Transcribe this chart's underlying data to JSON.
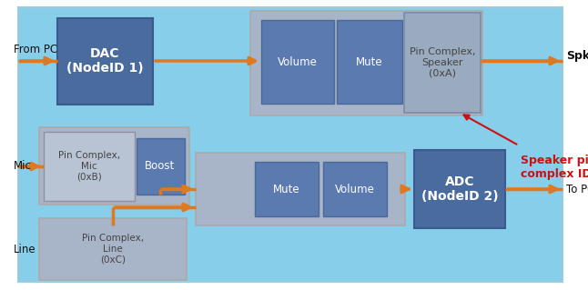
{
  "bg_color": "#87CEEB",
  "outer_bg": "#ffffff",
  "dark_blue": "#4a6b9e",
  "light_gray": "#a8b4c8",
  "medium_blue": "#5a7ab0",
  "arrow_color": "#e07820",
  "red_arrow": "#cc1111",
  "text_white": "#ffffff",
  "text_dark": "#444444",
  "text_black": "#111111",
  "dac_label": "DAC\n(NodeID 1)",
  "adc_label": "ADC\n(NodeID 2)",
  "pin_spk_label": "Pin Complex,\nSpeaker\n(0xA)",
  "pin_mic_label": "Pin Complex,\nMic\n(0xB)",
  "pin_line_label": "Pin Complex,\nLine\n(0xC)",
  "vol_label": "Volume",
  "mute_label": "Mute",
  "boost_label": "Boost",
  "from_pc": "From PC",
  "spkr": "Spkr",
  "mic": "Mic",
  "line": "Line",
  "to_pc": "To PC",
  "speaker_pin_label": "Speaker pin\ncomplex ID"
}
